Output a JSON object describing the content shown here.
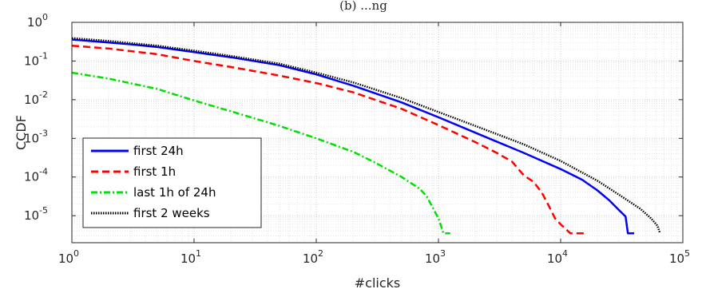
{
  "chart_data": {
    "type": "line",
    "title": "(b) ...ng",
    "xlabel": "#clicks",
    "ylabel": "CCDF",
    "x_scale": "log",
    "y_scale": "log",
    "xlim": [
      1,
      100000
    ],
    "ylim": [
      2e-06,
      1
    ],
    "grid": true,
    "legend_position": "bottom-left",
    "x_ticks": [
      {
        "base": "10",
        "exp": "0",
        "value": 1
      },
      {
        "base": "10",
        "exp": "1",
        "value": 10
      },
      {
        "base": "10",
        "exp": "2",
        "value": 100
      },
      {
        "base": "10",
        "exp": "3",
        "value": 1000
      },
      {
        "base": "10",
        "exp": "4",
        "value": 10000
      },
      {
        "base": "10",
        "exp": "5",
        "value": 100000
      }
    ],
    "y_ticks": [
      {
        "base": "10",
        "exp": "0",
        "value": 1
      },
      {
        "base": "10",
        "exp": "-1",
        "value": 0.1
      },
      {
        "base": "10",
        "exp": "-2",
        "value": 0.01
      },
      {
        "base": "10",
        "exp": "-3",
        "value": 0.001
      },
      {
        "base": "10",
        "exp": "-4",
        "value": 0.0001
      },
      {
        "base": "10",
        "exp": "-5",
        "value": 1e-05
      }
    ],
    "series": [
      {
        "name": "first 24h",
        "color": "#0000ff",
        "dash": "solid",
        "points": [
          [
            1,
            0.36
          ],
          [
            2,
            0.3
          ],
          [
            3,
            0.27
          ],
          [
            5,
            0.23
          ],
          [
            10,
            0.17
          ],
          [
            20,
            0.125
          ],
          [
            50,
            0.078
          ],
          [
            100,
            0.045
          ],
          [
            200,
            0.023
          ],
          [
            500,
            0.0085
          ],
          [
            1000,
            0.0035
          ],
          [
            2000,
            0.0014
          ],
          [
            5000,
            0.00042
          ],
          [
            10000,
            0.00016
          ],
          [
            15000,
            8.5e-05
          ],
          [
            20000,
            4.5e-05
          ],
          [
            25000,
            2.5e-05
          ],
          [
            30000,
            1.4e-05
          ],
          [
            34000,
            9.5e-06
          ],
          [
            35500,
            3.5e-06
          ],
          [
            40000,
            3.5e-06
          ]
        ]
      },
      {
        "name": "first 1h",
        "color": "#ff0000",
        "dash": "dashed",
        "points": [
          [
            1,
            0.25
          ],
          [
            2,
            0.21
          ],
          [
            5,
            0.15
          ],
          [
            10,
            0.1
          ],
          [
            20,
            0.07
          ],
          [
            50,
            0.042
          ],
          [
            100,
            0.027
          ],
          [
            200,
            0.0155
          ],
          [
            500,
            0.0058
          ],
          [
            1000,
            0.0022
          ],
          [
            2000,
            0.0008
          ],
          [
            3000,
            0.00042
          ],
          [
            4000,
            0.00025
          ],
          [
            5000,
            0.00011
          ],
          [
            6000,
            7.5e-05
          ],
          [
            7000,
            4e-05
          ],
          [
            8000,
            1.8e-05
          ],
          [
            9000,
            8.5e-06
          ],
          [
            10000,
            6e-06
          ],
          [
            12000,
            3.5e-06
          ],
          [
            16000,
            3.5e-06
          ]
        ]
      },
      {
        "name": "last 1h of 24h",
        "color": "#00e000",
        "dash": "dashdot",
        "points": [
          [
            1,
            0.05
          ],
          [
            2,
            0.035
          ],
          [
            5,
            0.019
          ],
          [
            10,
            0.0095
          ],
          [
            20,
            0.005
          ],
          [
            50,
            0.0021
          ],
          [
            100,
            0.001
          ],
          [
            200,
            0.00045
          ],
          [
            300,
            0.00024
          ],
          [
            500,
            0.0001
          ],
          [
            700,
            5e-05
          ],
          [
            800,
            3.2e-05
          ],
          [
            900,
            1.6e-05
          ],
          [
            1000,
            8.5e-06
          ],
          [
            1100,
            3.5e-06
          ],
          [
            1250,
            3.5e-06
          ]
        ]
      },
      {
        "name": "first 2 weeks",
        "color": "#000000",
        "dash": "dotted",
        "points": [
          [
            1,
            0.39
          ],
          [
            2,
            0.33
          ],
          [
            5,
            0.25
          ],
          [
            10,
            0.185
          ],
          [
            20,
            0.135
          ],
          [
            50,
            0.085
          ],
          [
            100,
            0.05
          ],
          [
            200,
            0.028
          ],
          [
            500,
            0.011
          ],
          [
            1000,
            0.0048
          ],
          [
            2000,
            0.0021
          ],
          [
            5000,
            0.0007
          ],
          [
            10000,
            0.00026
          ],
          [
            20000,
            8e-05
          ],
          [
            30000,
            3.5e-05
          ],
          [
            45000,
            1.5e-05
          ],
          [
            55000,
            8.5e-06
          ],
          [
            62000,
            5.5e-06
          ],
          [
            65000,
            3.5e-06
          ]
        ]
      }
    ]
  }
}
